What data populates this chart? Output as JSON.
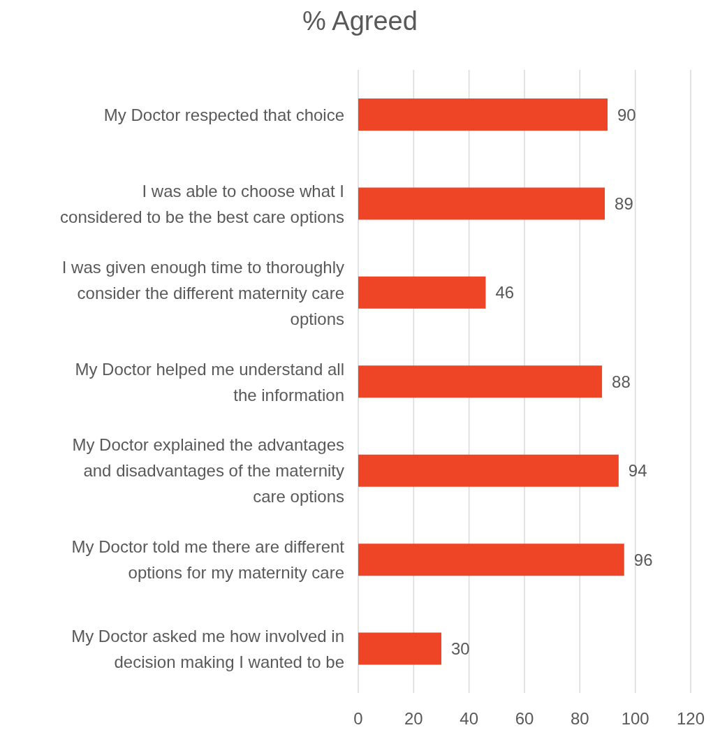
{
  "chart_data": {
    "type": "bar",
    "orientation": "horizontal",
    "title": "% Agreed",
    "categories": [
      "My Doctor respected that choice",
      "I was able to choose what I considered to be the best care options",
      "I was given enough time to thoroughly consider the different maternity care options",
      "My Doctor helped me understand all the information",
      "My Doctor explained the advantages and disadvantages of the maternity care options",
      "My Doctor told me there are different options for my maternity care",
      "My Doctor asked me how involved in decision making I wanted to be"
    ],
    "values": [
      90,
      89,
      46,
      88,
      94,
      96,
      30
    ],
    "color": "#ee4526",
    "xlim": [
      0,
      120
    ],
    "xticks": [
      0,
      20,
      40,
      60,
      80,
      100,
      120
    ],
    "grid": "x",
    "data_labels": true,
    "legend": false
  }
}
